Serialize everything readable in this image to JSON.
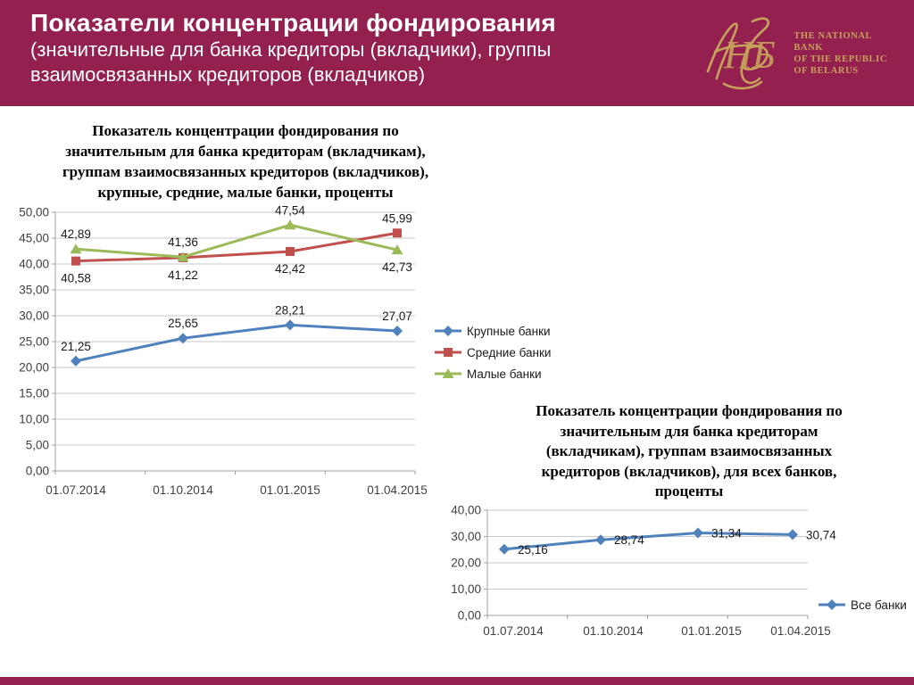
{
  "header": {
    "title": "Показатели концентрации фондирования",
    "subtitle_lines": [
      "(значительные для банка кредиторы (вкладчики), группы",
      "взаимосвязанных кредиторов (вкладчиков)"
    ]
  },
  "logo": {
    "monogram": "НБ",
    "lines": [
      "THE NATIONAL",
      "BANK",
      "OF THE REPUBLIC",
      "OF BELARUS"
    ]
  },
  "colors": {
    "header_bg": "#93204F",
    "gold": "#C6A15B",
    "grid": "#C9C9C9",
    "axis": "#A0A0A0",
    "blue": "#4F81BD",
    "red": "#C0504D",
    "green": "#9BBB59"
  },
  "chart_data": [
    {
      "type": "line",
      "title_lines": [
        "Показатель концентрации фондирования по",
        "значительным для банка кредиторам (вкладчикам),",
        "группам взаимосвязанных кредиторов (вкладчиков),",
        "крупные, средние, малые банки, проценты"
      ],
      "categories": [
        "01.07.2014",
        "01.10.2014",
        "01.01.2015",
        "01.04.2015"
      ],
      "ylim": [
        0,
        50
      ],
      "ytick_step": 5,
      "grid": true,
      "legend_position": "right",
      "decimal": "comma",
      "series": [
        {
          "name": "Крупные банки",
          "marker": "diamond",
          "color": "#4F81BD",
          "values": [
            21.25,
            25.65,
            28.21,
            27.07
          ],
          "label_pos": [
            "above",
            "above",
            "above",
            "above"
          ]
        },
        {
          "name": "Средние банки",
          "marker": "square",
          "color": "#C0504D",
          "values": [
            40.58,
            41.22,
            42.42,
            45.99
          ],
          "label_pos": [
            "below",
            "below",
            "below",
            "above"
          ]
        },
        {
          "name": "Малые банки",
          "marker": "triangle",
          "color": "#9BBB59",
          "values": [
            42.89,
            41.36,
            47.54,
            42.73
          ],
          "label_pos": [
            "above",
            "above",
            "above",
            "below"
          ]
        }
      ]
    },
    {
      "type": "line",
      "title_lines": [
        "Показатель концентрации фондирования по",
        "значительным для банка кредиторам",
        "(вкладчикам), группам взаимосвязанных",
        "кредиторов (вкладчиков), для всех банков,",
        "проценты"
      ],
      "categories": [
        "01.07.2014",
        "01.10.2014",
        "01.01.2015",
        "01.04.2015"
      ],
      "ylim": [
        0,
        40
      ],
      "ytick_step": 10,
      "grid": true,
      "legend_position": "right",
      "decimal": "comma",
      "series": [
        {
          "name": "Все банки",
          "marker": "diamond",
          "color": "#4F81BD",
          "values": [
            25.16,
            28.74,
            31.34,
            30.74
          ],
          "label_pos": [
            "right",
            "right",
            "right",
            "right"
          ]
        }
      ]
    }
  ]
}
